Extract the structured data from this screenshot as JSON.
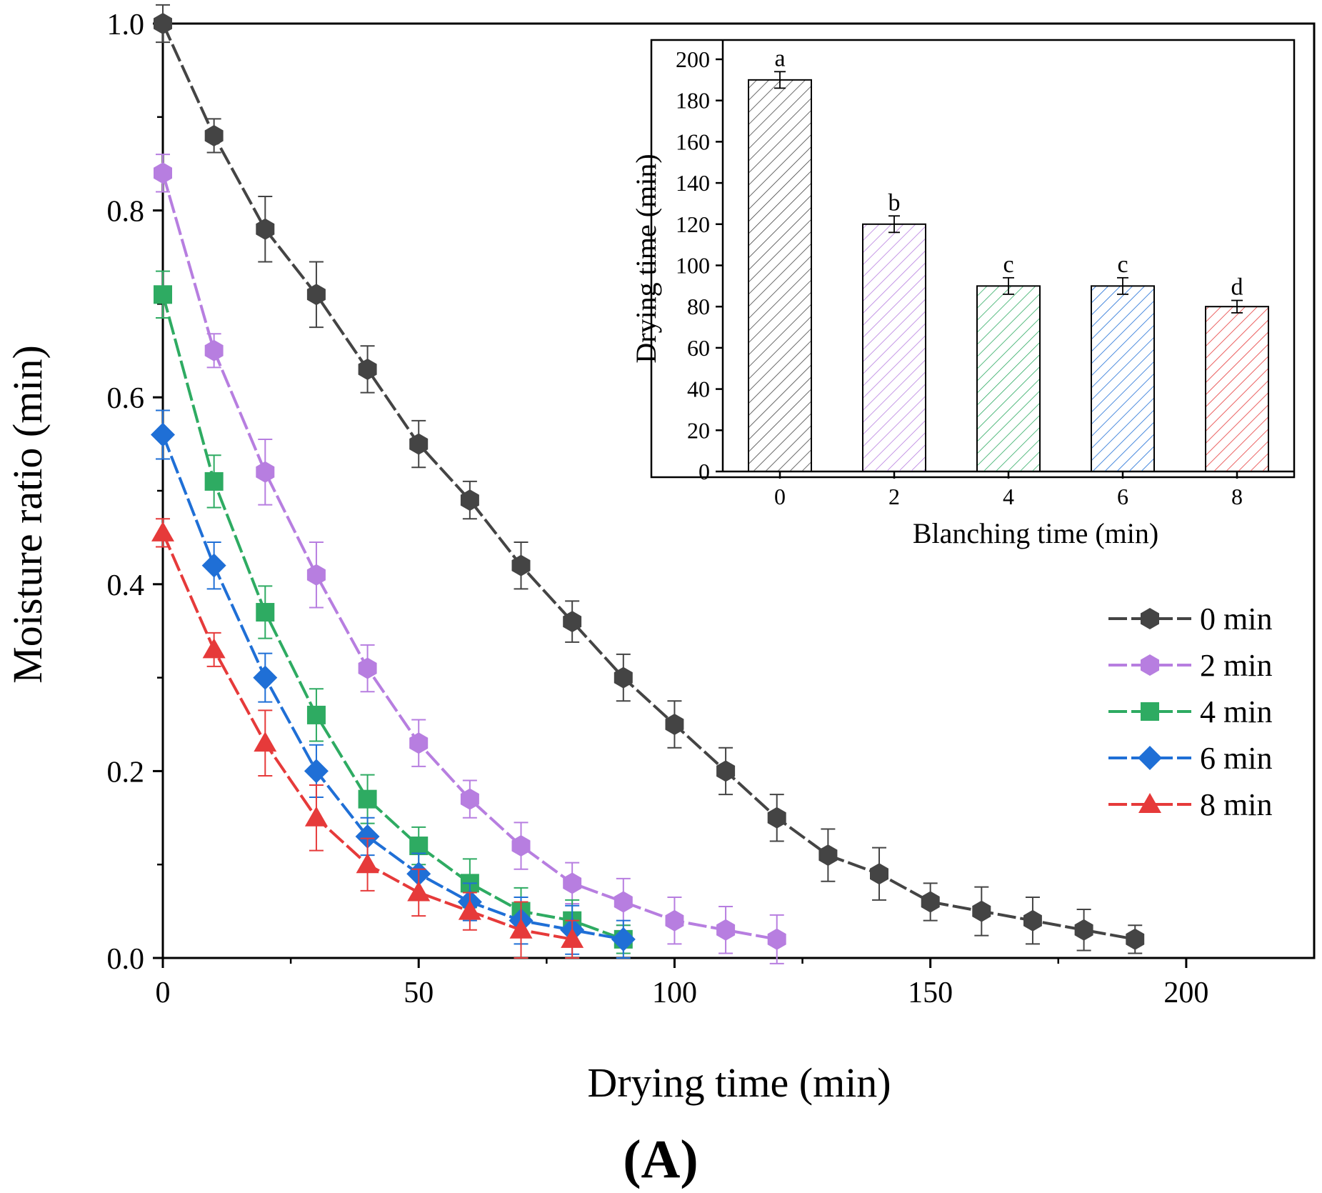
{
  "figure_label": "(A)",
  "chart_data": [
    {
      "type": "line",
      "title": "",
      "xlabel": "Drying time (min)",
      "ylabel": "Moisture ratio (min)",
      "xlim": [
        0,
        225
      ],
      "ylim": [
        0,
        1.0
      ],
      "xticks": [
        0,
        50,
        100,
        150,
        200
      ],
      "yticks": [
        0.0,
        0.2,
        0.4,
        0.6,
        0.8,
        1.0
      ],
      "xtick_labels": [
        "0",
        "50",
        "100",
        "150",
        "200"
      ],
      "ytick_labels": [
        "0.0",
        "0.2",
        "0.4",
        "0.6",
        "0.8",
        "1.0"
      ],
      "legend_position": "right",
      "series": [
        {
          "name": "0 min",
          "color": "#444444",
          "marker": "hexagon",
          "x": [
            0,
            10,
            20,
            30,
            40,
            50,
            60,
            70,
            80,
            90,
            100,
            110,
            120,
            130,
            140,
            150,
            160,
            170,
            180,
            190
          ],
          "y": [
            1.0,
            0.88,
            0.78,
            0.71,
            0.63,
            0.55,
            0.49,
            0.42,
            0.36,
            0.3,
            0.25,
            0.2,
            0.15,
            0.11,
            0.09,
            0.06,
            0.05,
            0.04,
            0.03,
            0.02
          ],
          "err": [
            0.02,
            0.018,
            0.035,
            0.035,
            0.025,
            0.025,
            0.02,
            0.025,
            0.022,
            0.025,
            0.025,
            0.025,
            0.025,
            0.028,
            0.028,
            0.02,
            0.026,
            0.025,
            0.022,
            0.015
          ]
        },
        {
          "name": "2 min",
          "color": "#b77ee0",
          "marker": "hexagon",
          "x": [
            0,
            10,
            20,
            30,
            40,
            50,
            60,
            70,
            80,
            90,
            100,
            110,
            120
          ],
          "y": [
            0.84,
            0.65,
            0.52,
            0.41,
            0.31,
            0.23,
            0.17,
            0.12,
            0.08,
            0.06,
            0.04,
            0.03,
            0.02
          ],
          "err": [
            0.02,
            0.018,
            0.035,
            0.035,
            0.025,
            0.025,
            0.02,
            0.025,
            0.022,
            0.025,
            0.025,
            0.025,
            0.026
          ]
        },
        {
          "name": "4 min",
          "color": "#2eab62",
          "marker": "square",
          "x": [
            0,
            10,
            20,
            30,
            40,
            50,
            60,
            70,
            80,
            90
          ],
          "y": [
            0.71,
            0.51,
            0.37,
            0.26,
            0.17,
            0.12,
            0.08,
            0.05,
            0.04,
            0.02
          ],
          "err": [
            0.025,
            0.028,
            0.028,
            0.028,
            0.026,
            0.02,
            0.026,
            0.025,
            0.022,
            0.015
          ]
        },
        {
          "name": "6 min",
          "color": "#1f6fd6",
          "marker": "diamond",
          "x": [
            0,
            10,
            20,
            30,
            40,
            50,
            60,
            70,
            80,
            90
          ],
          "y": [
            0.56,
            0.42,
            0.3,
            0.2,
            0.13,
            0.09,
            0.06,
            0.04,
            0.03,
            0.02
          ],
          "err": [
            0.026,
            0.025,
            0.026,
            0.028,
            0.02,
            0.022,
            0.02,
            0.025,
            0.026,
            0.02
          ]
        },
        {
          "name": "8 min",
          "color": "#e63a3a",
          "marker": "triangle",
          "x": [
            0,
            10,
            20,
            30,
            40,
            50,
            60,
            70,
            80
          ],
          "y": [
            0.455,
            0.33,
            0.23,
            0.15,
            0.1,
            0.07,
            0.05,
            0.03,
            0.02
          ],
          "err": [
            0.015,
            0.018,
            0.035,
            0.035,
            0.028,
            0.025,
            0.02,
            0.03,
            0.02
          ]
        }
      ]
    },
    {
      "type": "bar",
      "title": "",
      "xlabel": "Blanching time (min)",
      "ylabel": "Drying time (min)",
      "categories": [
        "0",
        "2",
        "4",
        "6",
        "8"
      ],
      "values": [
        190,
        120,
        90,
        90,
        80
      ],
      "errors": [
        4,
        4,
        4,
        4,
        3
      ],
      "significance": [
        "a",
        "b",
        "c",
        "c",
        "d"
      ],
      "colors": [
        "#444444",
        "#b77ee0",
        "#2eab62",
        "#1f6fd6",
        "#e63a3a"
      ],
      "ylim": [
        0,
        200
      ],
      "yticks": [
        0,
        20,
        40,
        60,
        80,
        100,
        120,
        140,
        160,
        180,
        200
      ],
      "ytick_labels": [
        "0",
        "20",
        "40",
        "60",
        "80",
        "100",
        "120",
        "140",
        "160",
        "180",
        "200"
      ]
    }
  ]
}
